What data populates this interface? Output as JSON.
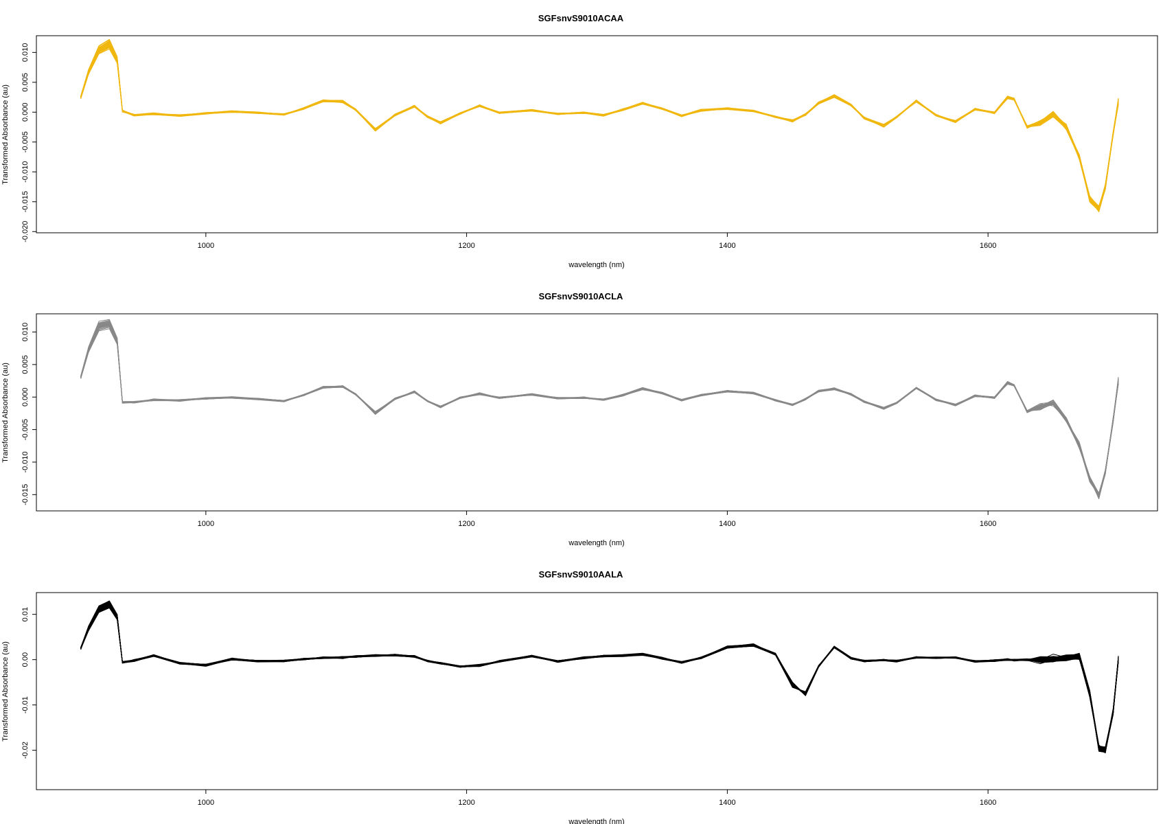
{
  "chart_data": [
    {
      "type": "line",
      "title": "SGFsnvS9010ACAA",
      "xlabel": "wavelength (nm)",
      "ylabel": "Transformed Absorbance (au)",
      "color": "#F0B70F",
      "xlim": [
        870,
        1730
      ],
      "ylim": [
        -0.0202,
        0.0128
      ],
      "xticks": [
        1000,
        1200,
        1400,
        1600
      ],
      "xtick_labels": [
        "1000",
        "1200",
        "1400",
        "1600"
      ],
      "yticks": [
        -0.02,
        -0.015,
        -0.01,
        -0.005,
        0.0,
        0.005,
        0.01
      ],
      "ytick_labels": [
        "-0.020",
        "-0.015",
        "-0.010",
        "-0.005",
        "0.000",
        "0.005",
        "0.010"
      ],
      "n_curves": 60,
      "x": [
        904,
        910,
        918,
        926,
        932,
        936,
        945,
        960,
        980,
        1000,
        1020,
        1040,
        1060,
        1075,
        1090,
        1105,
        1115,
        1130,
        1145,
        1160,
        1170,
        1180,
        1195,
        1210,
        1225,
        1250,
        1270,
        1290,
        1305,
        1320,
        1335,
        1350,
        1365,
        1380,
        1400,
        1420,
        1437,
        1450,
        1460,
        1470,
        1482,
        1495,
        1505,
        1520,
        1530,
        1545,
        1560,
        1575,
        1590,
        1605,
        1615,
        1620,
        1630,
        1640,
        1650,
        1660,
        1670,
        1678,
        1685,
        1690,
        1696,
        1700
      ],
      "series": [
        {
          "values": [
            0.0025,
            0.0068,
            0.0105,
            0.0115,
            0.0088,
            0.0002,
            -0.0005,
            -0.0003,
            -0.0006,
            -0.0002,
            0.0001,
            -0.0001,
            -0.0004,
            0.0006,
            0.0019,
            0.0018,
            0.0004,
            -0.003,
            -0.0005,
            0.001,
            -0.0008,
            -0.0018,
            -0.0002,
            0.0011,
            -0.0001,
            0.0003,
            -0.0003,
            -0.0001,
            -0.0005,
            0.0004,
            0.0015,
            0.0006,
            -0.0006,
            0.0003,
            0.0006,
            0.0002,
            -0.0008,
            -0.0015,
            -0.0004,
            0.0015,
            0.0027,
            0.0012,
            -0.001,
            -0.0023,
            -0.0008,
            0.0019,
            -0.0005,
            -0.0016,
            0.0005,
            -0.0001,
            0.0025,
            0.0022,
            -0.0025,
            -0.0017,
            -0.0003,
            -0.0025,
            -0.0075,
            -0.0145,
            -0.0163,
            -0.0125,
            -0.0035,
            0.0018
          ]
        }
      ]
    },
    {
      "type": "line",
      "title": "SGFsnvS9010ACLA",
      "xlabel": "wavelength (nm)",
      "ylabel": "Transformed Absorbance (au)",
      "color": "#888888",
      "xlim": [
        870,
        1730
      ],
      "ylim": [
        -0.0175,
        0.0128
      ],
      "xticks": [
        1000,
        1200,
        1400,
        1600
      ],
      "xtick_labels": [
        "1000",
        "1200",
        "1400",
        "1600"
      ],
      "yticks": [
        -0.015,
        -0.01,
        -0.005,
        0.0,
        0.005,
        0.01
      ],
      "ytick_labels": [
        "-0.015",
        "-0.010",
        "-0.005",
        "0.000",
        "0.005",
        "0.010"
      ],
      "n_curves": 40,
      "x": [
        904,
        910,
        918,
        926,
        932,
        936,
        945,
        960,
        980,
        1000,
        1020,
        1040,
        1060,
        1075,
        1090,
        1105,
        1115,
        1130,
        1145,
        1160,
        1170,
        1180,
        1195,
        1210,
        1225,
        1250,
        1270,
        1290,
        1305,
        1320,
        1335,
        1350,
        1365,
        1380,
        1400,
        1420,
        1437,
        1450,
        1460,
        1470,
        1482,
        1495,
        1505,
        1520,
        1530,
        1545,
        1560,
        1575,
        1590,
        1605,
        1615,
        1620,
        1630,
        1640,
        1650,
        1660,
        1670,
        1678,
        1685,
        1690,
        1696,
        1700
      ],
      "series": [
        {
          "values": [
            0.003,
            0.0072,
            0.0108,
            0.0112,
            0.0085,
            -0.0008,
            -0.0008,
            -0.0004,
            -0.0005,
            -0.0002,
            -0.0001,
            -0.0003,
            -0.0006,
            0.0003,
            0.0015,
            0.0016,
            0.0004,
            -0.0024,
            -0.0003,
            0.0008,
            -0.0006,
            -0.0015,
            -0.0001,
            0.0005,
            -0.0001,
            0.0004,
            -0.0002,
            -0.0001,
            -0.0004,
            0.0003,
            0.0013,
            0.0006,
            -0.0005,
            0.0003,
            0.0009,
            0.0006,
            -0.0005,
            -0.0012,
            -0.0003,
            0.0009,
            0.0013,
            0.0004,
            -0.0007,
            -0.0017,
            -0.0009,
            0.0014,
            -0.0004,
            -0.0012,
            0.0002,
            -0.0001,
            0.0022,
            0.0018,
            -0.0022,
            -0.0015,
            -0.0009,
            -0.0035,
            -0.0075,
            -0.0125,
            -0.0152,
            -0.0115,
            -0.0035,
            0.0025
          ]
        }
      ]
    },
    {
      "type": "line",
      "title": "SGFsnvS9010AALA",
      "xlabel": "wavelength (nm)",
      "ylabel": "Transformed Absorbance (au)",
      "color": "#000000",
      "xlim": [
        870,
        1730
      ],
      "ylim": [
        -0.0287,
        0.0148
      ],
      "xticks": [
        1000,
        1200,
        1400,
        1600
      ],
      "xtick_labels": [
        "1000",
        "1200",
        "1400",
        "1600"
      ],
      "yticks": [
        -0.02,
        -0.01,
        0.0,
        0.01
      ],
      "ytick_labels": [
        "-0.02",
        "-0.01",
        "0.00",
        "0.01"
      ],
      "n_curves": 80,
      "x": [
        904,
        910,
        918,
        926,
        932,
        936,
        945,
        960,
        980,
        1000,
        1020,
        1040,
        1060,
        1075,
        1090,
        1105,
        1115,
        1130,
        1145,
        1160,
        1170,
        1180,
        1195,
        1210,
        1225,
        1250,
        1270,
        1290,
        1305,
        1320,
        1335,
        1350,
        1365,
        1380,
        1400,
        1420,
        1437,
        1450,
        1460,
        1470,
        1482,
        1495,
        1505,
        1520,
        1530,
        1545,
        1560,
        1575,
        1590,
        1605,
        1615,
        1620,
        1630,
        1640,
        1650,
        1660,
        1670,
        1678,
        1685,
        1690,
        1696,
        1700
      ],
      "series": [
        {
          "values": [
            0.0025,
            0.007,
            0.0112,
            0.0122,
            0.0095,
            -0.0006,
            -0.0002,
            0.0009,
            -0.0008,
            -0.0012,
            0.0001,
            -0.0003,
            -0.0003,
            0.0001,
            0.0004,
            0.0005,
            0.0007,
            0.0009,
            0.001,
            0.0007,
            -0.0003,
            -0.0008,
            -0.0015,
            -0.0013,
            -0.0004,
            0.0008,
            -0.0004,
            0.0004,
            0.0008,
            0.0009,
            0.0012,
            0.0003,
            -0.0006,
            0.0004,
            0.0028,
            0.0032,
            0.0012,
            -0.0055,
            -0.0076,
            -0.0015,
            0.0028,
            0.0003,
            -0.0003,
            -0.0001,
            -0.0003,
            0.0005,
            0.0004,
            0.0005,
            -0.0004,
            -0.0002,
            0.0,
            -0.0001,
            0.0,
            0.0,
            0.0002,
            0.0005,
            0.0008,
            -0.0075,
            -0.0195,
            -0.02,
            -0.0115,
            0.0002
          ]
        }
      ]
    }
  ]
}
